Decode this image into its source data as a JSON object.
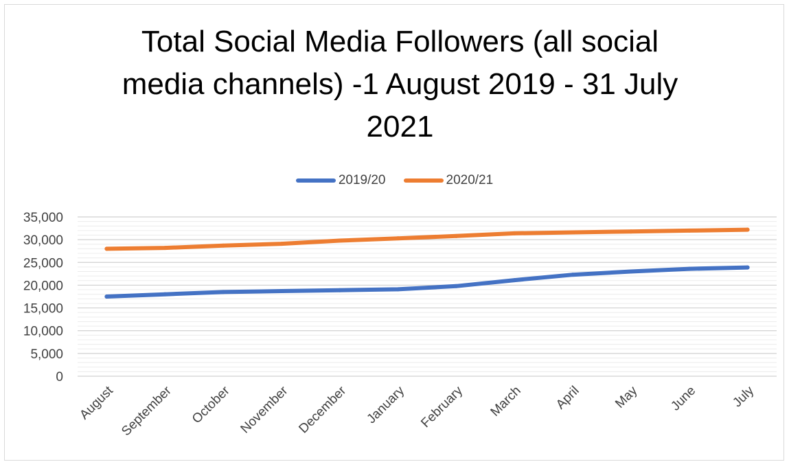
{
  "chart_data": {
    "type": "line",
    "title": "Total Social Media Followers (all social media channels) -1 August 2019 - 31 July 2021",
    "title_lines": [
      "Total Social Media Followers (all social",
      "media channels) -1 August 2019 - 31 July",
      "2021"
    ],
    "categories": [
      "August",
      "September",
      "October",
      "November",
      "December",
      "January",
      "February",
      "March",
      "April",
      "May",
      "June",
      "July"
    ],
    "series": [
      {
        "name": "2019/20",
        "color": "#4472c4",
        "values": [
          17500,
          18000,
          18500,
          18700,
          18900,
          19100,
          19800,
          21100,
          22300,
          23000,
          23600,
          23900
        ]
      },
      {
        "name": "2020/21",
        "color": "#ed7d31",
        "values": [
          28000,
          28200,
          28700,
          29100,
          29800,
          30300,
          30800,
          31400,
          31600,
          31800,
          32000,
          32200
        ]
      }
    ],
    "y_ticks": [
      "0",
      "5,000",
      "10,000",
      "15,000",
      "20,000",
      "25,000",
      "30,000",
      "35,000"
    ],
    "ylim": [
      0,
      35000
    ],
    "xlabel": "",
    "ylabel": "",
    "legend_position": "top",
    "grid": true
  }
}
